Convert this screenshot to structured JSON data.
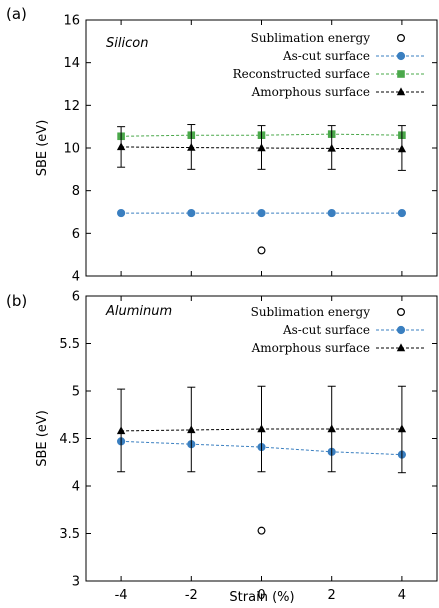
{
  "figure": {
    "xlabel": "Strain (%)"
  },
  "chart_data": [
    {
      "type": "line",
      "panel_tag": "(a)",
      "title": "Silicon",
      "xlabel": "Strain (%)",
      "ylabel": "SBE (eV)",
      "x": [
        -4,
        -2,
        0,
        2,
        4
      ],
      "x_ticks": [
        -4,
        -2,
        0,
        2,
        4
      ],
      "x_tick_labels": [
        "-4",
        "-2",
        "0",
        "2",
        "4"
      ],
      "xlim": [
        -5,
        5
      ],
      "ylim": [
        4,
        16
      ],
      "y_ticks": [
        4,
        6,
        8,
        10,
        12,
        14,
        16
      ],
      "y_tick_labels": [
        "4",
        "6",
        "8",
        "10",
        "12",
        "14",
        "16"
      ],
      "legend_position": "top-right",
      "grid": false,
      "series": [
        {
          "name": "Sublimation energy",
          "marker": "open-circle",
          "color": "#000000",
          "line": false,
          "points": [
            {
              "x": 0,
              "y": 5.2
            }
          ]
        },
        {
          "name": "As-cut surface",
          "marker": "circle",
          "color": "#3a7fc0",
          "line": true,
          "values": [
            6.95,
            6.95,
            6.95,
            6.95,
            6.95
          ]
        },
        {
          "name": "Reconstructed surface",
          "marker": "square",
          "color": "#4aa84a",
          "line": true,
          "values": [
            10.55,
            10.6,
            10.6,
            10.65,
            10.6
          ]
        },
        {
          "name": "Amorphous surface",
          "marker": "triangle",
          "color": "#000000",
          "line": true,
          "values": [
            10.05,
            10.02,
            10.0,
            9.98,
            9.95
          ],
          "error_low": [
            9.1,
            9.0,
            9.0,
            9.0,
            8.95
          ],
          "error_high": [
            11.0,
            11.1,
            11.05,
            11.05,
            11.05
          ]
        }
      ]
    },
    {
      "type": "line",
      "panel_tag": "(b)",
      "title": "Aluminum",
      "xlabel": "Strain (%)",
      "ylabel": "SBE (eV)",
      "x": [
        -4,
        -2,
        0,
        2,
        4
      ],
      "x_ticks": [
        -4,
        -2,
        0,
        2,
        4
      ],
      "x_tick_labels": [
        "-4",
        "-2",
        "0",
        "2",
        "4"
      ],
      "xlim": [
        -5,
        5
      ],
      "ylim": [
        3,
        6
      ],
      "y_ticks": [
        3,
        3.5,
        4,
        4.5,
        5,
        5.5,
        6
      ],
      "y_tick_labels": [
        "3",
        "3.5",
        "4",
        "4.5",
        "5",
        "5.5",
        "6"
      ],
      "legend_position": "top-right",
      "grid": false,
      "series": [
        {
          "name": "Sublimation energy",
          "marker": "open-circle",
          "color": "#000000",
          "line": false,
          "points": [
            {
              "x": 0,
              "y": 3.53
            }
          ]
        },
        {
          "name": "As-cut surface",
          "marker": "circle",
          "color": "#3a7fc0",
          "line": true,
          "values": [
            4.47,
            4.44,
            4.41,
            4.36,
            4.33
          ]
        },
        {
          "name": "Amorphous surface",
          "marker": "triangle",
          "color": "#000000",
          "line": true,
          "values": [
            4.58,
            4.59,
            4.6,
            4.6,
            4.6
          ],
          "error_low": [
            4.15,
            4.15,
            4.15,
            4.15,
            4.14
          ],
          "error_high": [
            5.02,
            5.04,
            5.05,
            5.05,
            5.05
          ]
        }
      ]
    }
  ]
}
